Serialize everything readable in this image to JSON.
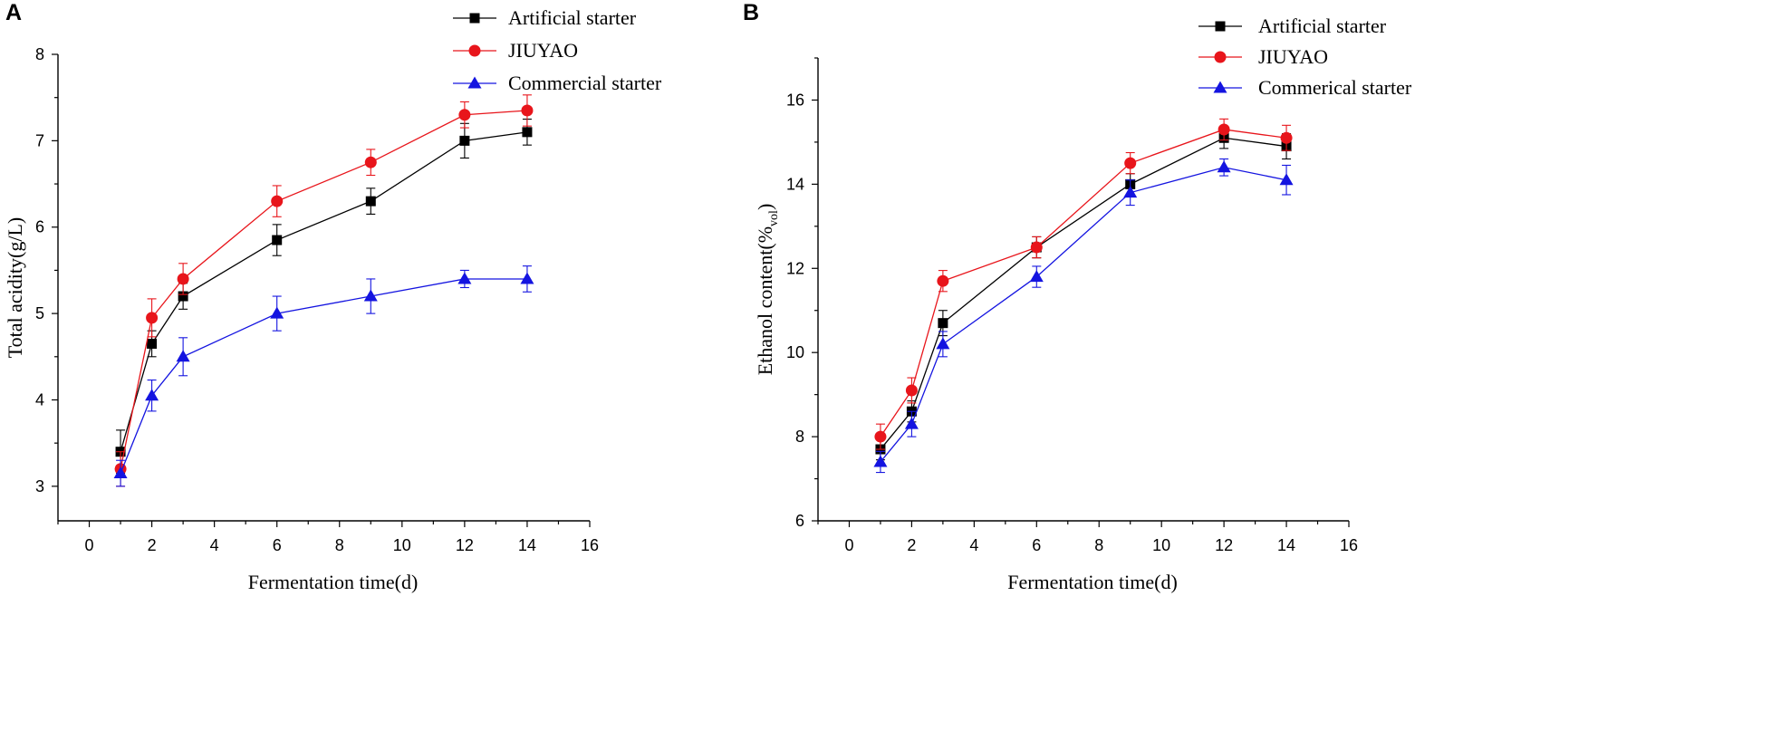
{
  "chart_data": [
    {
      "type": "line",
      "panel_label": "A",
      "xlabel": "Fermentation time(d)",
      "ylabel": "Total acidity(g/L)",
      "xlim": [
        -1,
        16
      ],
      "ylim": [
        2.6,
        8
      ],
      "xticks": [
        0,
        2,
        4,
        6,
        8,
        10,
        12,
        14,
        16
      ],
      "yticks": [
        3,
        4,
        5,
        6,
        7,
        8
      ],
      "legend_position": "top-right",
      "x": [
        1,
        2,
        3,
        6,
        9,
        12,
        14
      ],
      "series": [
        {
          "name": "Artificial starter",
          "color": "#000000",
          "marker": "square",
          "values": [
            3.4,
            4.65,
            5.2,
            5.85,
            6.3,
            7.0,
            7.1
          ],
          "errors": [
            0.25,
            0.15,
            0.15,
            0.18,
            0.15,
            0.2,
            0.15
          ]
        },
        {
          "name": "JIUYAO",
          "color": "#e8151b",
          "marker": "circle",
          "values": [
            3.2,
            4.95,
            5.4,
            6.3,
            6.75,
            7.3,
            7.35
          ],
          "errors": [
            0.2,
            0.22,
            0.18,
            0.18,
            0.15,
            0.15,
            0.18
          ]
        },
        {
          "name": "Commercial starter",
          "color": "#1414e0",
          "marker": "triangle",
          "values": [
            3.15,
            4.05,
            4.5,
            5.0,
            5.2,
            5.4,
            5.4
          ],
          "errors": [
            0.15,
            0.18,
            0.22,
            0.2,
            0.2,
            0.1,
            0.15
          ]
        }
      ]
    },
    {
      "type": "line",
      "panel_label": "B",
      "xlabel": "Fermentation time(d)",
      "ylabel": "Ethanol content(%",
      "ylabel_sub": "vol",
      "ylabel_end": ")",
      "xlim": [
        -1,
        16
      ],
      "ylim": [
        6,
        17
      ],
      "xticks": [
        0,
        2,
        4,
        6,
        8,
        10,
        12,
        14,
        16
      ],
      "yticks": [
        6,
        8,
        10,
        12,
        14,
        16
      ],
      "legend_position": "top-right",
      "x": [
        1,
        2,
        3,
        6,
        9,
        12,
        14
      ],
      "series": [
        {
          "name": "Artificial starter",
          "color": "#000000",
          "marker": "square",
          "values": [
            7.7,
            8.6,
            10.7,
            12.5,
            14.0,
            15.1,
            14.9
          ],
          "errors": [
            0.25,
            0.25,
            0.3,
            0.25,
            0.25,
            0.25,
            0.3
          ]
        },
        {
          "name": "JIUYAO",
          "color": "#e8151b",
          "marker": "circle",
          "values": [
            8.0,
            9.1,
            11.7,
            12.5,
            14.5,
            15.3,
            15.1
          ],
          "errors": [
            0.3,
            0.3,
            0.25,
            0.25,
            0.25,
            0.25,
            0.3
          ]
        },
        {
          "name": "Commerical starter",
          "color": "#1414e0",
          "marker": "triangle",
          "values": [
            7.4,
            8.3,
            10.2,
            11.8,
            13.8,
            14.4,
            14.1
          ],
          "errors": [
            0.25,
            0.3,
            0.3,
            0.25,
            0.3,
            0.2,
            0.35
          ]
        }
      ]
    }
  ]
}
